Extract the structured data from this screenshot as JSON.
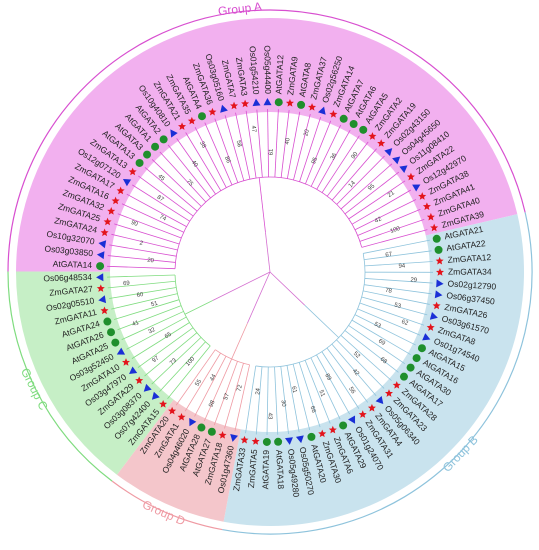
{
  "groups": [
    {
      "label": "Group A",
      "color": "#f2b0ef",
      "line": "#d84fd0",
      "leaves": [
        {
          "label": "AtGATA14",
          "marker": "circle"
        },
        {
          "label": "Os03g03850",
          "marker": "triangle"
        },
        {
          "label": "Os10g32070",
          "marker": "triangle"
        },
        {
          "label": "ZmGATA24",
          "marker": "star"
        },
        {
          "label": "ZmGATA25",
          "marker": "star"
        },
        {
          "label": "ZmGATA32",
          "marker": "star"
        },
        {
          "label": "ZmGATA16",
          "marker": "star"
        },
        {
          "label": "ZmGATA17",
          "marker": "star"
        },
        {
          "label": "Os12g07120",
          "marker": "triangle"
        },
        {
          "label": "ZmGATA13",
          "marker": "star"
        },
        {
          "label": "AtGATA13",
          "marker": "circle"
        },
        {
          "label": "AtGATA3",
          "marker": "circle"
        },
        {
          "label": "AtGATA1",
          "marker": "circle"
        },
        {
          "label": "AtGATA2",
          "marker": "circle"
        },
        {
          "label": "Os10g40810",
          "marker": "triangle"
        },
        {
          "label": "ZmGATA21",
          "marker": "star"
        },
        {
          "label": "ZmGATA35",
          "marker": "star"
        },
        {
          "label": "AtGATA4",
          "marker": "circle"
        },
        {
          "label": "ZmGATA36",
          "marker": "star"
        },
        {
          "label": "Os03g05160",
          "marker": "triangle"
        },
        {
          "label": "ZmGATA7",
          "marker": "star"
        },
        {
          "label": "ZmGATA3",
          "marker": "star"
        },
        {
          "label": "Os01g54210",
          "marker": "triangle"
        },
        {
          "label": "Os05g44400",
          "marker": "triangle"
        },
        {
          "label": "AtGATA12",
          "marker": "circle"
        },
        {
          "label": "ZmGATA9",
          "marker": "star"
        },
        {
          "label": "AtGATA8",
          "marker": "circle"
        },
        {
          "label": "ZmGATA37",
          "marker": "star"
        },
        {
          "label": "Os02g56250",
          "marker": "triangle"
        },
        {
          "label": "ZmGATA14",
          "marker": "star"
        },
        {
          "label": "AtGATA7",
          "marker": "circle"
        },
        {
          "label": "AtGATA6",
          "marker": "circle"
        },
        {
          "label": "AtGATA5",
          "marker": "circle"
        },
        {
          "label": "ZmGATA2",
          "marker": "star"
        },
        {
          "label": "ZmGATA19",
          "marker": "star"
        },
        {
          "label": "Os02g43150",
          "marker": "triangle"
        },
        {
          "label": "Os04g45650",
          "marker": "triangle"
        },
        {
          "label": "Os11g08410",
          "marker": "triangle"
        },
        {
          "label": "ZmGATA22",
          "marker": "star"
        },
        {
          "label": "Os12g42970",
          "marker": "triangle"
        },
        {
          "label": "ZmGATA38",
          "marker": "star"
        },
        {
          "label": "ZmGATA41",
          "marker": "star"
        },
        {
          "label": "ZmGATA40",
          "marker": "star"
        },
        {
          "label": "ZmGATA39",
          "marker": "star"
        }
      ],
      "support": [
        "20",
        "2",
        "90",
        "74",
        "87",
        "45",
        "75",
        "40",
        "38",
        "86",
        "58",
        "47",
        "61",
        "40",
        "20",
        "95",
        "36",
        "90",
        "14",
        "95",
        "21",
        "42",
        "100"
      ]
    },
    {
      "label": "Group B",
      "color": "#c9e3ee",
      "line": "#8ec3dc",
      "leaves": [
        {
          "label": "AtGATA21",
          "marker": "circle"
        },
        {
          "label": "AtGATA22",
          "marker": "circle"
        },
        {
          "label": "ZmGATA12",
          "marker": "star"
        },
        {
          "label": "ZmGATA34",
          "marker": "star"
        },
        {
          "label": "Os02g12790",
          "marker": "triangle"
        },
        {
          "label": "Os06g37450",
          "marker": "triangle"
        },
        {
          "label": "ZmGATA26",
          "marker": "star"
        },
        {
          "label": "Os03g61570",
          "marker": "triangle"
        },
        {
          "label": "ZmGATA8",
          "marker": "star"
        },
        {
          "label": "Os01g74540",
          "marker": "triangle"
        },
        {
          "label": "AtGATA15",
          "marker": "circle"
        },
        {
          "label": "AtGATA16",
          "marker": "circle"
        },
        {
          "label": "AtGATA30",
          "marker": "circle"
        },
        {
          "label": "AtGATA17",
          "marker": "circle"
        },
        {
          "label": "ZmGATA28",
          "marker": "star"
        },
        {
          "label": "ZmGATA23",
          "marker": "star"
        },
        {
          "label": "Os05g06340",
          "marker": "triangle"
        },
        {
          "label": "ZmGATA4",
          "marker": "star"
        },
        {
          "label": "ZmGATA31",
          "marker": "star"
        },
        {
          "label": "Os01g24070",
          "marker": "triangle"
        },
        {
          "label": "AtGATA29",
          "marker": "circle"
        },
        {
          "label": "ZmGATA6",
          "marker": "star"
        },
        {
          "label": "ZmGATA30",
          "marker": "star"
        },
        {
          "label": "AtGATA20",
          "marker": "circle"
        },
        {
          "label": "Os05g50270",
          "marker": "triangle"
        },
        {
          "label": "Os05g49280",
          "marker": "triangle"
        },
        {
          "label": "AtGATA18",
          "marker": "circle"
        },
        {
          "label": "AtGATA19",
          "marker": "circle"
        },
        {
          "label": "ZmGATA5",
          "marker": "star"
        },
        {
          "label": "ZmGATA33",
          "marker": "star"
        }
      ],
      "support": [
        "67",
        "94",
        "29",
        "78",
        "53",
        "62",
        "53",
        "69",
        "68",
        "52",
        "42",
        "56",
        "89",
        "51",
        "66",
        "61",
        "30",
        "43",
        "24"
      ]
    },
    {
      "label": "Group D",
      "color": "#f4c6cb",
      "line": "#ef9aa3",
      "leaves": [
        {
          "label": "Os01g47360",
          "marker": "triangle"
        },
        {
          "label": "ZmGATA18",
          "marker": "star"
        },
        {
          "label": "AtGATA27",
          "marker": "circle"
        },
        {
          "label": "AtGATA28",
          "marker": "circle"
        },
        {
          "label": "Os04g46020",
          "marker": "triangle"
        },
        {
          "label": "ZmGATA1",
          "marker": "star"
        },
        {
          "label": "ZmGATA20",
          "marker": "star"
        }
      ],
      "support": [
        "72",
        "57",
        "98",
        "44",
        "55"
      ]
    },
    {
      "label": "Group C",
      "color": "#c6efc6",
      "line": "#7fdc7f",
      "leaves": [
        {
          "label": "ZmGATA15",
          "marker": "star"
        },
        {
          "label": "Os07g42400",
          "marker": "triangle"
        },
        {
          "label": "Os03g08370",
          "marker": "triangle"
        },
        {
          "label": "ZmGATA29",
          "marker": "star"
        },
        {
          "label": "Os03g47970",
          "marker": "triangle"
        },
        {
          "label": "ZmGATA10",
          "marker": "star"
        },
        {
          "label": "Os03g52450",
          "marker": "triangle"
        },
        {
          "label": "AtGATA25",
          "marker": "circle"
        },
        {
          "label": "AtGATA26",
          "marker": "circle"
        },
        {
          "label": "AtGATA24",
          "marker": "circle"
        },
        {
          "label": "ZmGATA11",
          "marker": "star"
        },
        {
          "label": "Os02g05510",
          "marker": "triangle"
        },
        {
          "label": "ZmGATA27",
          "marker": "star"
        },
        {
          "label": "Os06g48534",
          "marker": "triangle"
        }
      ],
      "support": [
        "100",
        "73",
        "97",
        "65",
        "32",
        "41",
        "51",
        "60",
        "69"
      ]
    }
  ]
}
